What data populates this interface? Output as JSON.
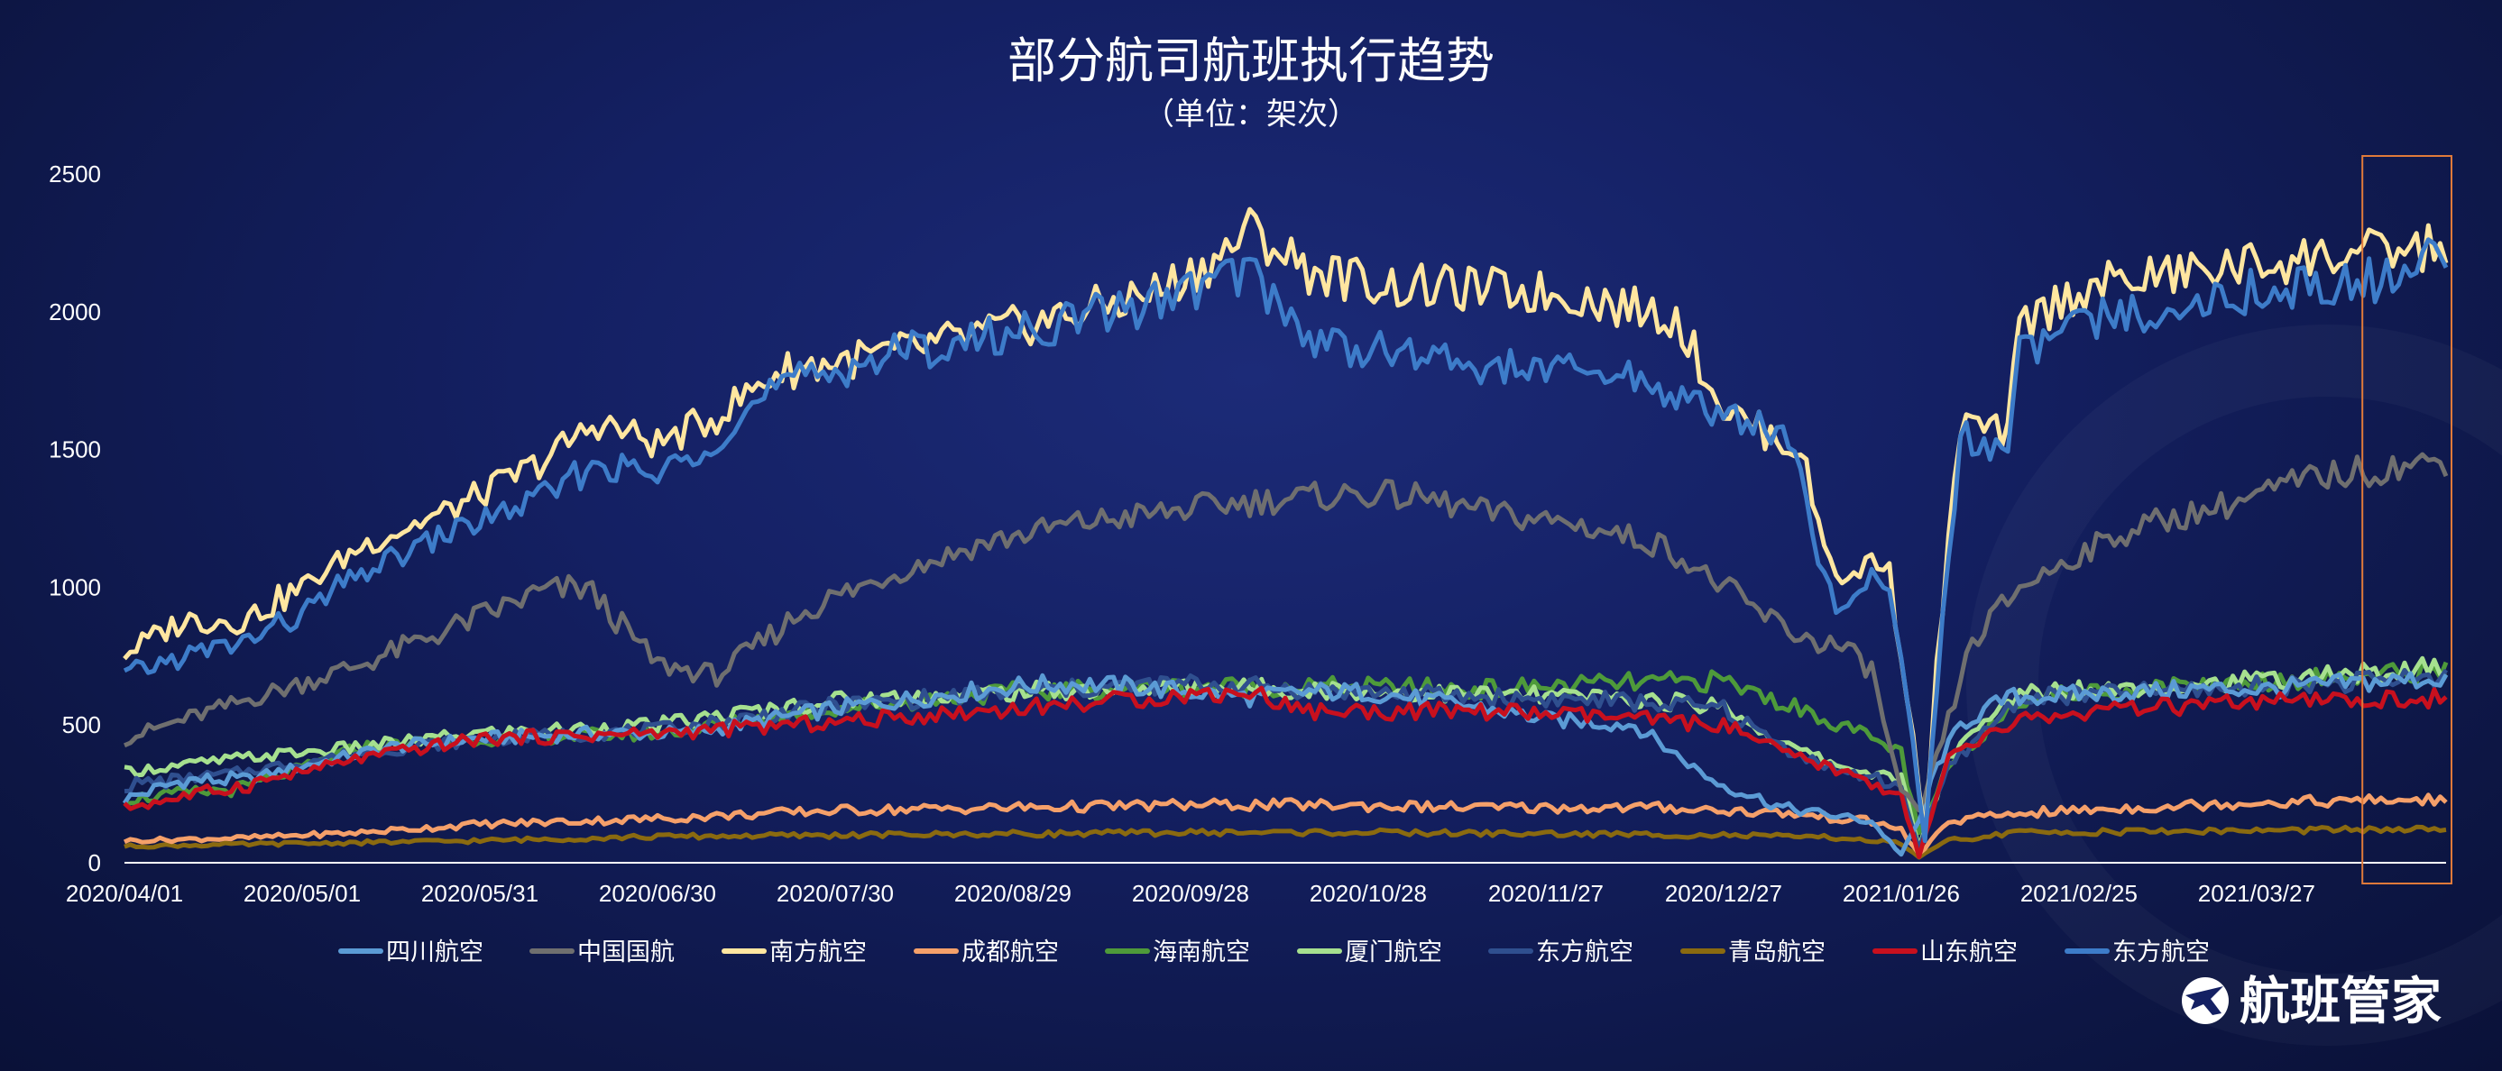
{
  "chart_data": {
    "type": "line",
    "title": "部分航司航班执行趋势",
    "subtitle": "（单位：架次）",
    "xlabel": "",
    "ylabel": "",
    "ylim": [
      0,
      2500
    ],
    "y_ticks": [
      "0",
      "500",
      "1000",
      "1500",
      "2000",
      "2500"
    ],
    "x_tick_labels": [
      "2020/04/01",
      "2020/05/01",
      "2020/05/31",
      "2020/06/30",
      "2020/07/30",
      "2020/08/29",
      "2020/09/28",
      "2020/10/28",
      "2020/11/27",
      "2020/12/27",
      "2021/01/26",
      "2021/02/25",
      "2021/03/27"
    ],
    "x_range_days": [
      0,
      392
    ],
    "grid": false,
    "legend_position": "bottom",
    "highlight_box": {
      "color": "#e07a3a",
      "x_days_range": [
        380,
        392
      ]
    },
    "series": [
      {
        "name": "四川航空",
        "color": "#5b9bd5",
        "days": [
          0,
          10,
          20,
          30,
          45,
          60,
          80,
          95,
          120,
          150,
          160,
          170,
          180,
          190,
          200,
          210,
          230,
          240,
          255,
          268,
          280,
          295,
          300,
          303,
          306,
          310,
          318,
          330,
          350,
          362,
          375,
          392
        ],
        "values": [
          230,
          300,
          300,
          350,
          420,
          450,
          470,
          470,
          560,
          640,
          650,
          640,
          620,
          600,
          620,
          620,
          560,
          520,
          500,
          300,
          200,
          150,
          30,
          150,
          350,
          500,
          600,
          610,
          630,
          630,
          650,
          670
        ]
      },
      {
        "name": "中国国航",
        "color": "#6f6f6f",
        "days": [
          0,
          10,
          25,
          40,
          55,
          70,
          78,
          90,
          100,
          115,
          130,
          145,
          160,
          175,
          185,
          195,
          210,
          220,
          230,
          245,
          260,
          275,
          283,
          290,
          295,
          300,
          303,
          307,
          312,
          320,
          330,
          340,
          355,
          370,
          385,
          392
        ],
        "values": [
          450,
          520,
          620,
          720,
          850,
          980,
          1000,
          720,
          680,
          920,
          1050,
          1160,
          1230,
          1270,
          1300,
          1320,
          1340,
          1320,
          1270,
          1230,
          1150,
          920,
          820,
          780,
          700,
          250,
          180,
          450,
          800,
          1000,
          1120,
          1220,
          1300,
          1400,
          1440,
          1460
        ]
      },
      {
        "name": "南方航空",
        "color": "#ffe6a0",
        "days": [
          0,
          10,
          20,
          30,
          40,
          55,
          70,
          80,
          90,
          100,
          110,
          120,
          130,
          145,
          160,
          175,
          185,
          190,
          200,
          215,
          230,
          245,
          255,
          262,
          270,
          278,
          283,
          287,
          291,
          295,
          298,
          301,
          304,
          306,
          310,
          318,
          320,
          330,
          340,
          355,
          370,
          385,
          392
        ],
        "values": [
          760,
          880,
          880,
          1000,
          1150,
          1280,
          1450,
          1600,
          1520,
          1620,
          1780,
          1820,
          1850,
          1920,
          1990,
          2080,
          2200,
          2300,
          2150,
          2090,
          2080,
          2060,
          2010,
          1980,
          1650,
          1550,
          1500,
          1150,
          1000,
          1120,
          1050,
          620,
          100,
          700,
          1600,
          1550,
          1950,
          2080,
          2120,
          2160,
          2200,
          2220,
          2240
        ]
      },
      {
        "name": "成都航空",
        "color": "#f5a06a",
        "days": [
          0,
          20,
          40,
          60,
          90,
          120,
          150,
          180,
          200,
          230,
          260,
          280,
          295,
          300,
          303,
          308,
          320,
          340,
          360,
          380,
          392
        ],
        "values": [
          80,
          90,
          110,
          140,
          160,
          190,
          200,
          210,
          210,
          200,
          200,
          180,
          150,
          120,
          30,
          150,
          180,
          200,
          220,
          225,
          230
        ]
      },
      {
        "name": "海南航空",
        "color": "#4e9a3a",
        "days": [
          0,
          20,
          40,
          60,
          90,
          120,
          150,
          180,
          200,
          230,
          250,
          270,
          280,
          290,
          300,
          303,
          308,
          320,
          340,
          360,
          380,
          392
        ],
        "values": [
          230,
          270,
          420,
          450,
          470,
          560,
          620,
          640,
          640,
          630,
          650,
          660,
          580,
          500,
          400,
          100,
          350,
          600,
          630,
          660,
          680,
          700
        ]
      },
      {
        "name": "厦门航空",
        "color": "#a6e08f",
        "days": [
          0,
          20,
          40,
          60,
          90,
          120,
          150,
          180,
          200,
          230,
          250,
          270,
          280,
          290,
          300,
          303,
          308,
          320,
          340,
          360,
          380,
          392
        ],
        "values": [
          330,
          380,
          420,
          470,
          500,
          590,
          620,
          640,
          630,
          610,
          600,
          570,
          430,
          350,
          300,
          60,
          380,
          620,
          640,
          660,
          690,
          710
        ]
      },
      {
        "name": "东方航空",
        "color": "#2f4f8f",
        "days": [
          0,
          20,
          40,
          60,
          90,
          120,
          150,
          180,
          200,
          230,
          250,
          270,
          280,
          290,
          300,
          303,
          308,
          320,
          340,
          360,
          380,
          392
        ],
        "values": [
          280,
          330,
          400,
          450,
          480,
          570,
          620,
          650,
          630,
          600,
          590,
          560,
          420,
          330,
          280,
          50,
          350,
          600,
          620,
          640,
          660,
          680
        ]
      },
      {
        "name": "青岛航空",
        "color": "#8a6a10",
        "days": [
          0,
          30,
          60,
          90,
          120,
          150,
          180,
          210,
          240,
          270,
          290,
          300,
          303,
          308,
          320,
          350,
          380,
          392
        ],
        "values": [
          60,
          70,
          80,
          95,
          100,
          105,
          110,
          110,
          105,
          100,
          90,
          70,
          20,
          80,
          110,
          115,
          120,
          120
        ]
      },
      {
        "name": "山东航空",
        "color": "#c8101e",
        "days": [
          0,
          20,
          40,
          60,
          90,
          120,
          150,
          180,
          190,
          200,
          230,
          250,
          270,
          280,
          290,
          300,
          303,
          308,
          320,
          340,
          360,
          380,
          392
        ],
        "values": [
          200,
          280,
          380,
          450,
          470,
          510,
          560,
          610,
          620,
          550,
          550,
          530,
          500,
          400,
          330,
          250,
          20,
          380,
          520,
          560,
          580,
          590,
          600
        ]
      },
      {
        "name": "东方航空",
        "color": "#3d7cc9",
        "days": [
          0,
          10,
          20,
          30,
          40,
          55,
          70,
          80,
          90,
          100,
          110,
          120,
          130,
          145,
          160,
          175,
          185,
          190,
          200,
          215,
          230,
          245,
          255,
          262,
          270,
          278,
          283,
          287,
          291,
          295,
          298,
          301,
          304,
          306,
          310,
          318,
          320,
          330,
          340,
          355,
          370,
          385,
          392
        ],
        "values": [
          680,
          750,
          800,
          900,
          1050,
          1200,
          1320,
          1450,
          1400,
          1550,
          1720,
          1790,
          1850,
          1900,
          1970,
          2040,
          2120,
          2150,
          1900,
          1850,
          1800,
          1780,
          1760,
          1700,
          1620,
          1580,
          1450,
          1000,
          900,
          1050,
          1000,
          600,
          80,
          650,
          1550,
          1500,
          1850,
          1950,
          2000,
          2060,
          2100,
          2120,
          2220
        ]
      }
    ]
  },
  "brand": {
    "name": "航班管家",
    "logo_icon": "plane-logo-icon"
  }
}
